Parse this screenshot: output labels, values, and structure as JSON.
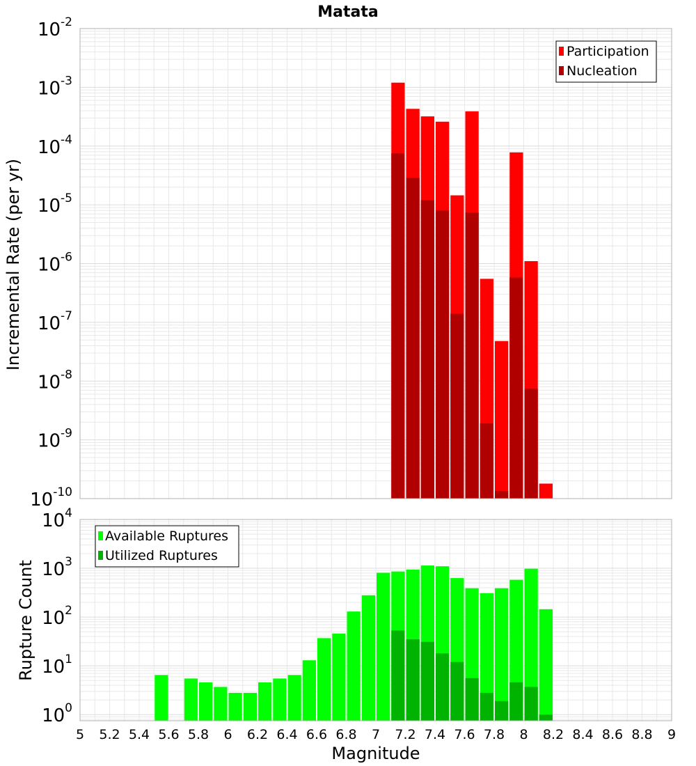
{
  "title": "Matata",
  "xlabel": "Magnitude",
  "xticks": [
    "5",
    "5.2",
    "5.4",
    "5.6",
    "5.8",
    "6",
    "6.2",
    "6.4",
    "6.6",
    "6.8",
    "7",
    "7.2",
    "7.4",
    "7.6",
    "7.8",
    "8",
    "8.2",
    "8.4",
    "8.6",
    "8.8",
    "9"
  ],
  "colors": {
    "participation": "#ff0000",
    "nucleation": "#b00000",
    "available": "#00ff00",
    "utilized": "#00b300",
    "grid": "#e8e8e8",
    "frame": "#b0b0b0"
  },
  "chart_data": [
    {
      "type": "bar",
      "yscale": "log",
      "ylabel": "Incremental Rate (per yr)",
      "ylim": [
        1e-10,
        0.01
      ],
      "yticks": [
        {
          "base": "10",
          "exp": "-2"
        },
        {
          "base": "10",
          "exp": "-3"
        },
        {
          "base": "10",
          "exp": "-4"
        },
        {
          "base": "10",
          "exp": "-5"
        },
        {
          "base": "10",
          "exp": "-6"
        },
        {
          "base": "10",
          "exp": "-7"
        },
        {
          "base": "10",
          "exp": "-8"
        },
        {
          "base": "10",
          "exp": "-9"
        },
        {
          "base": "10",
          "exp": "-10"
        }
      ],
      "xlim": [
        5,
        9
      ],
      "bin_width": 0.1,
      "legend_position": "top-right",
      "series": [
        {
          "name": "Participation",
          "x": [
            7.15,
            7.25,
            7.35,
            7.45,
            7.55,
            7.65,
            7.75,
            7.85,
            7.95,
            8.05,
            8.15
          ],
          "values": [
            0.0012,
            0.00043,
            0.00032,
            0.00026,
            1.45e-05,
            0.00039,
            5.5e-07,
            4.8e-08,
            7.8e-05,
            1.1e-06,
            1.8e-10
          ]
        },
        {
          "name": "Nucleation",
          "x": [
            7.15,
            7.25,
            7.35,
            7.45,
            7.55,
            7.65,
            7.75,
            7.85,
            7.95,
            8.05,
            8.15
          ],
          "values": [
            7.5e-05,
            2.9e-05,
            1.2e-05,
            8e-06,
            1.4e-07,
            7.4e-06,
            1.9e-09,
            1.35e-10,
            5.8e-07,
            7.4e-09,
            null
          ]
        }
      ]
    },
    {
      "type": "bar",
      "yscale": "log",
      "ylabel": "Rupture Count",
      "ylim": [
        0.75,
        10000
      ],
      "yticks": [
        {
          "base": "10",
          "exp": "4"
        },
        {
          "base": "10",
          "exp": "3"
        },
        {
          "base": "10",
          "exp": "2"
        },
        {
          "base": "10",
          "exp": "1"
        },
        {
          "base": "10",
          "exp": "0"
        }
      ],
      "xlim": [
        5,
        9
      ],
      "bin_width": 0.1,
      "legend_position": "top-left",
      "series": [
        {
          "name": "Available Ruptures",
          "x": [
            5.55,
            5.75,
            5.85,
            5.95,
            6.05,
            6.15,
            6.25,
            6.35,
            6.45,
            6.55,
            6.65,
            6.75,
            6.85,
            6.95,
            7.05,
            7.15,
            7.25,
            7.35,
            7.45,
            7.55,
            7.65,
            7.75,
            7.85,
            7.95,
            8.05,
            8.15
          ],
          "values": [
            6.5,
            5.5,
            4.6,
            3.7,
            2.8,
            2.8,
            4.6,
            5.5,
            6.5,
            13,
            37,
            46,
            130,
            280,
            810,
            860,
            940,
            1140,
            1100,
            630,
            390,
            310,
            390,
            580,
            980,
            145
          ]
        },
        {
          "name": "Utilized Ruptures",
          "x": [
            7.15,
            7.25,
            7.35,
            7.45,
            7.55,
            7.65,
            7.75,
            7.85,
            7.95,
            8.05,
            8.15
          ],
          "values": [
            53,
            35,
            31,
            18,
            12,
            5.6,
            2.8,
            1.9,
            4.6,
            3.7,
            1
          ]
        }
      ]
    }
  ]
}
